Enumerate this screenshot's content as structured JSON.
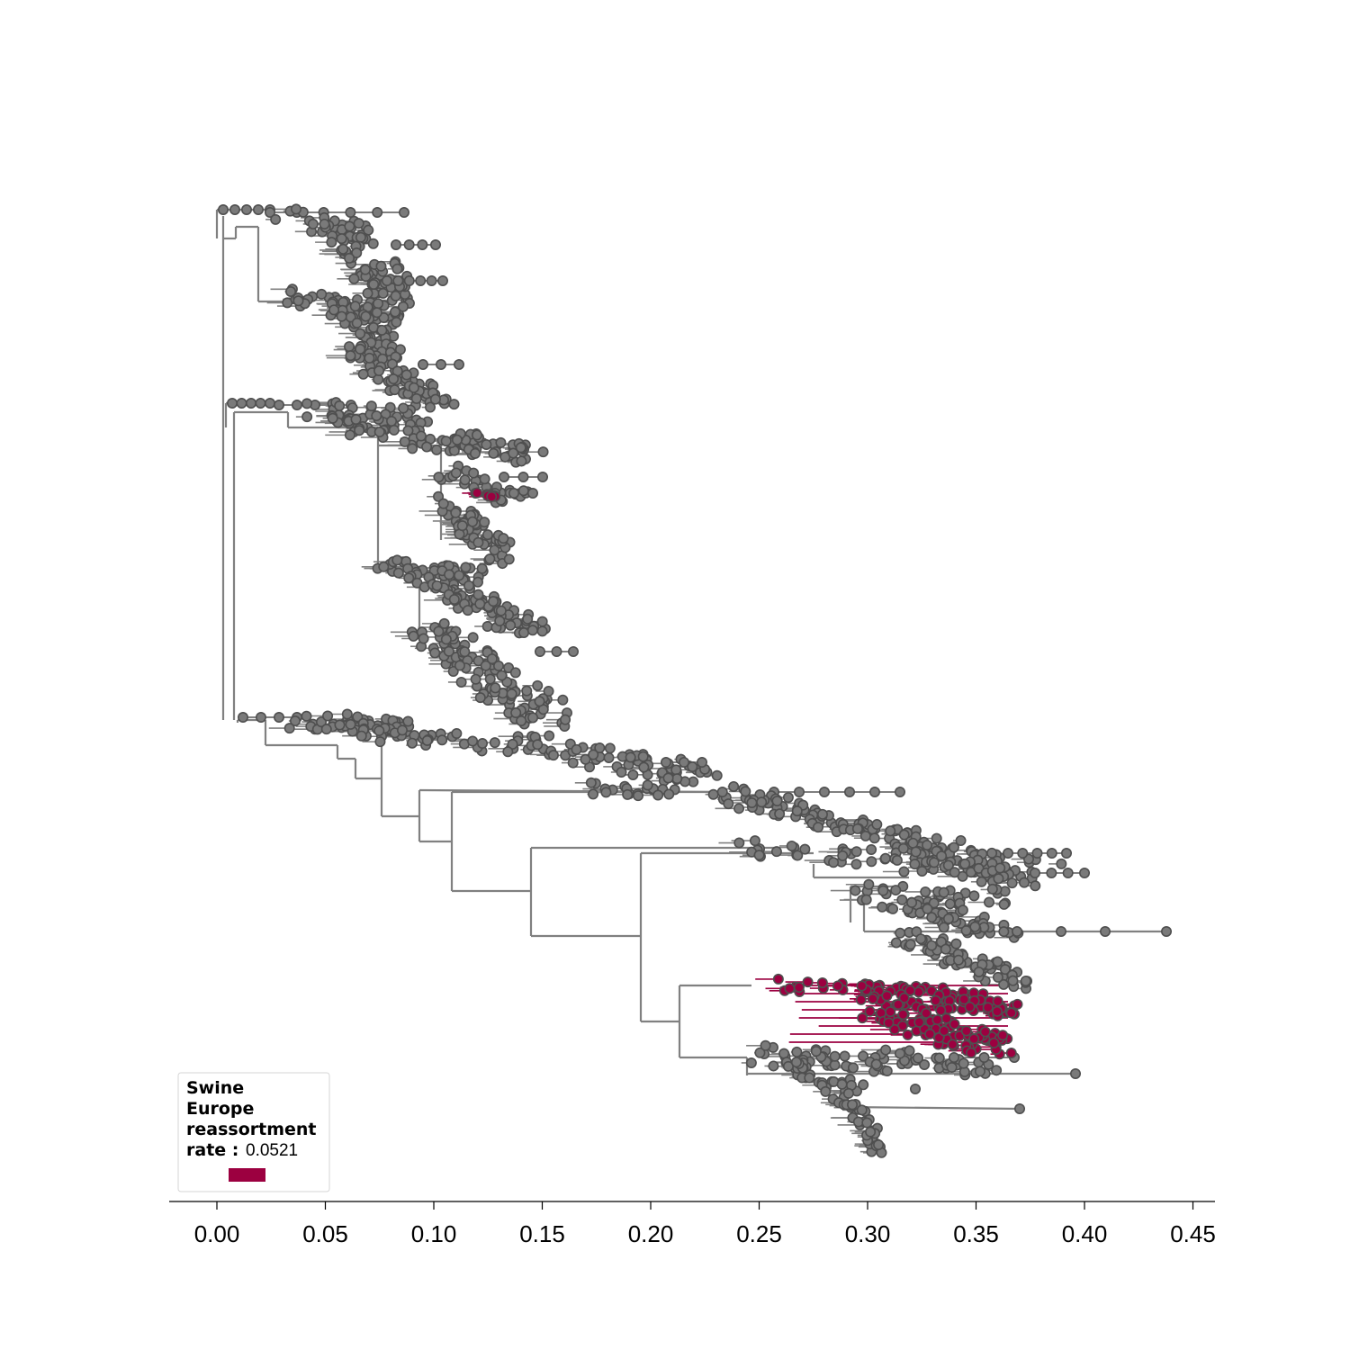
{
  "colors": {
    "branch": "#808080",
    "tip_fill": "#7a7a7a",
    "tip_stroke": "#4f4f4f",
    "highlight": "#9c0040",
    "axis": "#000000"
  },
  "legend": {
    "title_lines": [
      "Swine",
      "Europe",
      "reassortment",
      "rate :"
    ],
    "value": "0.0521",
    "placement": "lower-left"
  },
  "chart_data": {
    "type": "phylogenetic-tree",
    "xlabel": "",
    "ylabel": "",
    "xlim": [
      -0.022,
      0.46
    ],
    "ticks": [
      0.0,
      0.05,
      0.1,
      0.15,
      0.2,
      0.25,
      0.3,
      0.35,
      0.4,
      0.45
    ],
    "tick_labels": [
      "0.00",
      "0.05",
      "0.10",
      "0.15",
      "0.20",
      "0.25",
      "0.30",
      "0.35",
      "0.40",
      "0.45"
    ],
    "grid": false,
    "highlighted_series": "Swine Europe reassortment rate",
    "highlight_value": 0.0521
  }
}
